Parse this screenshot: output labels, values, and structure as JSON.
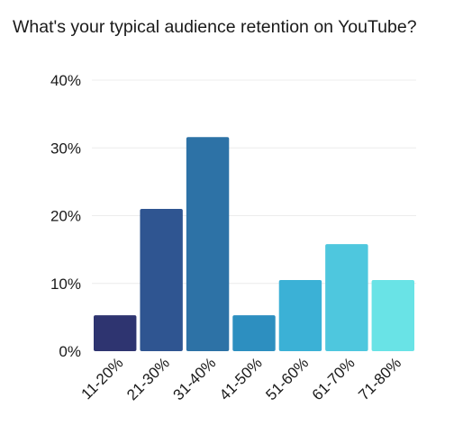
{
  "chart_data": {
    "type": "bar",
    "title": "What's your typical audience retention on YouTube?",
    "xlabel": "",
    "ylabel": "",
    "categories": [
      "11-20%",
      "21-30%",
      "31-40%",
      "41-50%",
      "51-60%",
      "61-70%",
      "71-80%"
    ],
    "values": [
      5.3,
      21.0,
      31.6,
      5.3,
      10.5,
      15.8,
      10.5
    ],
    "ylim": [
      0,
      40
    ],
    "yticks": [
      "0%",
      "10%",
      "20%",
      "30%",
      "40%"
    ],
    "colors": [
      "#2e3470",
      "#2f5591",
      "#2d72a6",
      "#2d8fc0",
      "#3bb1d6",
      "#4ec7de",
      "#69e3e6"
    ],
    "grid": true,
    "gridline_color": "#ececec"
  }
}
